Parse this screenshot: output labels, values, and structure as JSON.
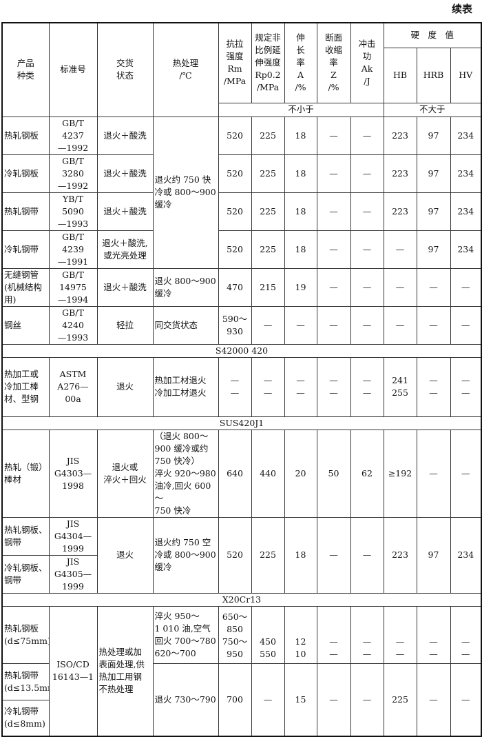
{
  "title": "续表",
  "header": {
    "product": "产品\n种类",
    "standard": "标准号",
    "delivery": "交货\n状态",
    "heat": "热处理\n/℃",
    "rm": "抗拉\n强度\nRm\n/MPa",
    "rp": "规定非\n比例延\n伸强度\nRp0.2\n/MPa",
    "a": "伸\n长\n率\nA\n/%",
    "z": "断面\n收缩\n率\nZ\n/%",
    "ak": "冲击\n功\nAk\n/J",
    "hardness": "硬　度　值",
    "hb": "HB",
    "hrb": "HRB",
    "hv": "HV",
    "min": "不小于",
    "max": "不大于"
  },
  "group1_heat": "退火约 750 快\n冷或 800～900\n缓冷",
  "rows": [
    [
      "热轧钢板",
      "GB/T 4237\n—1992",
      "退火＋酸洗",
      "520",
      "225",
      "18",
      "—",
      "—",
      "223",
      "97",
      "234"
    ],
    [
      "冷轧钢板",
      "GB/T 3280\n—1992",
      "退火＋酸洗",
      "520",
      "225",
      "18",
      "—",
      "—",
      "223",
      "97",
      "234"
    ],
    [
      "热轧钢带",
      "YB/T 5090\n—1993",
      "退火＋酸洗",
      "520",
      "225",
      "18",
      "—",
      "—",
      "223",
      "97",
      "234"
    ],
    [
      "冷轧钢带",
      "GB/T 4239\n—1991",
      "退火＋酸洗,\n或光亮处理",
      "520",
      "225",
      "18",
      "—",
      "—",
      "—",
      "97",
      "234"
    ],
    [
      "无缝钢管\n(机械结构\n用)",
      "GB/T 14975\n—1994",
      "退火＋酸洗",
      "退火 800～900\n缓冷",
      "470",
      "215",
      "19",
      "—",
      "—",
      "—",
      "—",
      "—"
    ],
    [
      "钢丝",
      "GB/T 4240\n—1993",
      "轻拉",
      "同交货状态",
      "590～930",
      "—",
      "—",
      "—",
      "—",
      "—",
      "—",
      "—"
    ]
  ],
  "sections": [
    "S42000 420",
    "SUS420J1",
    "X20Cr13"
  ],
  "astm": [
    "热加工或\n冷加工棒\n材、型钢",
    "ASTM\nA276—00a",
    "退火",
    "热加工材退火\n冷加工材退火",
    "—\n—",
    "—\n—",
    "—\n—",
    "—\n—",
    "—\n—",
    "241\n255",
    "—\n—",
    "—\n—"
  ],
  "jis1": [
    "热轧（锻）\n棒材",
    "JIS\nG4303—1998",
    "退火或\n淬火＋回火",
    "（退火 800～\n900 缓冷或约\n750 快冷）\n淬火 920～980\n油冷,回火 600～\n750 快冷",
    "640",
    "440",
    "20",
    "50",
    "62",
    "≥192",
    "—",
    "—"
  ],
  "jis2": {
    "product_a": "热轧钢板、\n钢带",
    "std_a": "JIS\nG4304—1999",
    "product_b": "冷轧钢板、\n钢带",
    "std_b": "JIS\nG4305—1999",
    "delivery": "退火",
    "heat": "退火约 750 空\n冷或 800～900\n缓冷",
    "values": [
      "520",
      "225",
      "18",
      "—",
      "—",
      "223",
      "97",
      "234"
    ]
  },
  "iso": {
    "product_a": "热轧钢板\n(d≤75mm)",
    "product_b": "热轧钢带\n(d≤13.5mm)",
    "product_c": "冷轧钢带\n(d≤8mm)",
    "std": "ISO/CD\n16143—1",
    "delivery": "热处理或加\n表面处理,供\n热加工用钢\n不热处理",
    "heat_a": "淬火 950～\n1 010 油,空气\n回火 700～780\n620～700",
    "values_a": [
      "650～850\n750～950",
      "450\n550",
      "12\n10",
      "—\n—",
      "—\n—",
      "—\n—",
      "—\n—",
      "—\n—"
    ],
    "heat_b": "退火 730～790",
    "values_b": [
      "700",
      "—",
      "15",
      "—",
      "—",
      "225",
      "—",
      "—"
    ]
  }
}
